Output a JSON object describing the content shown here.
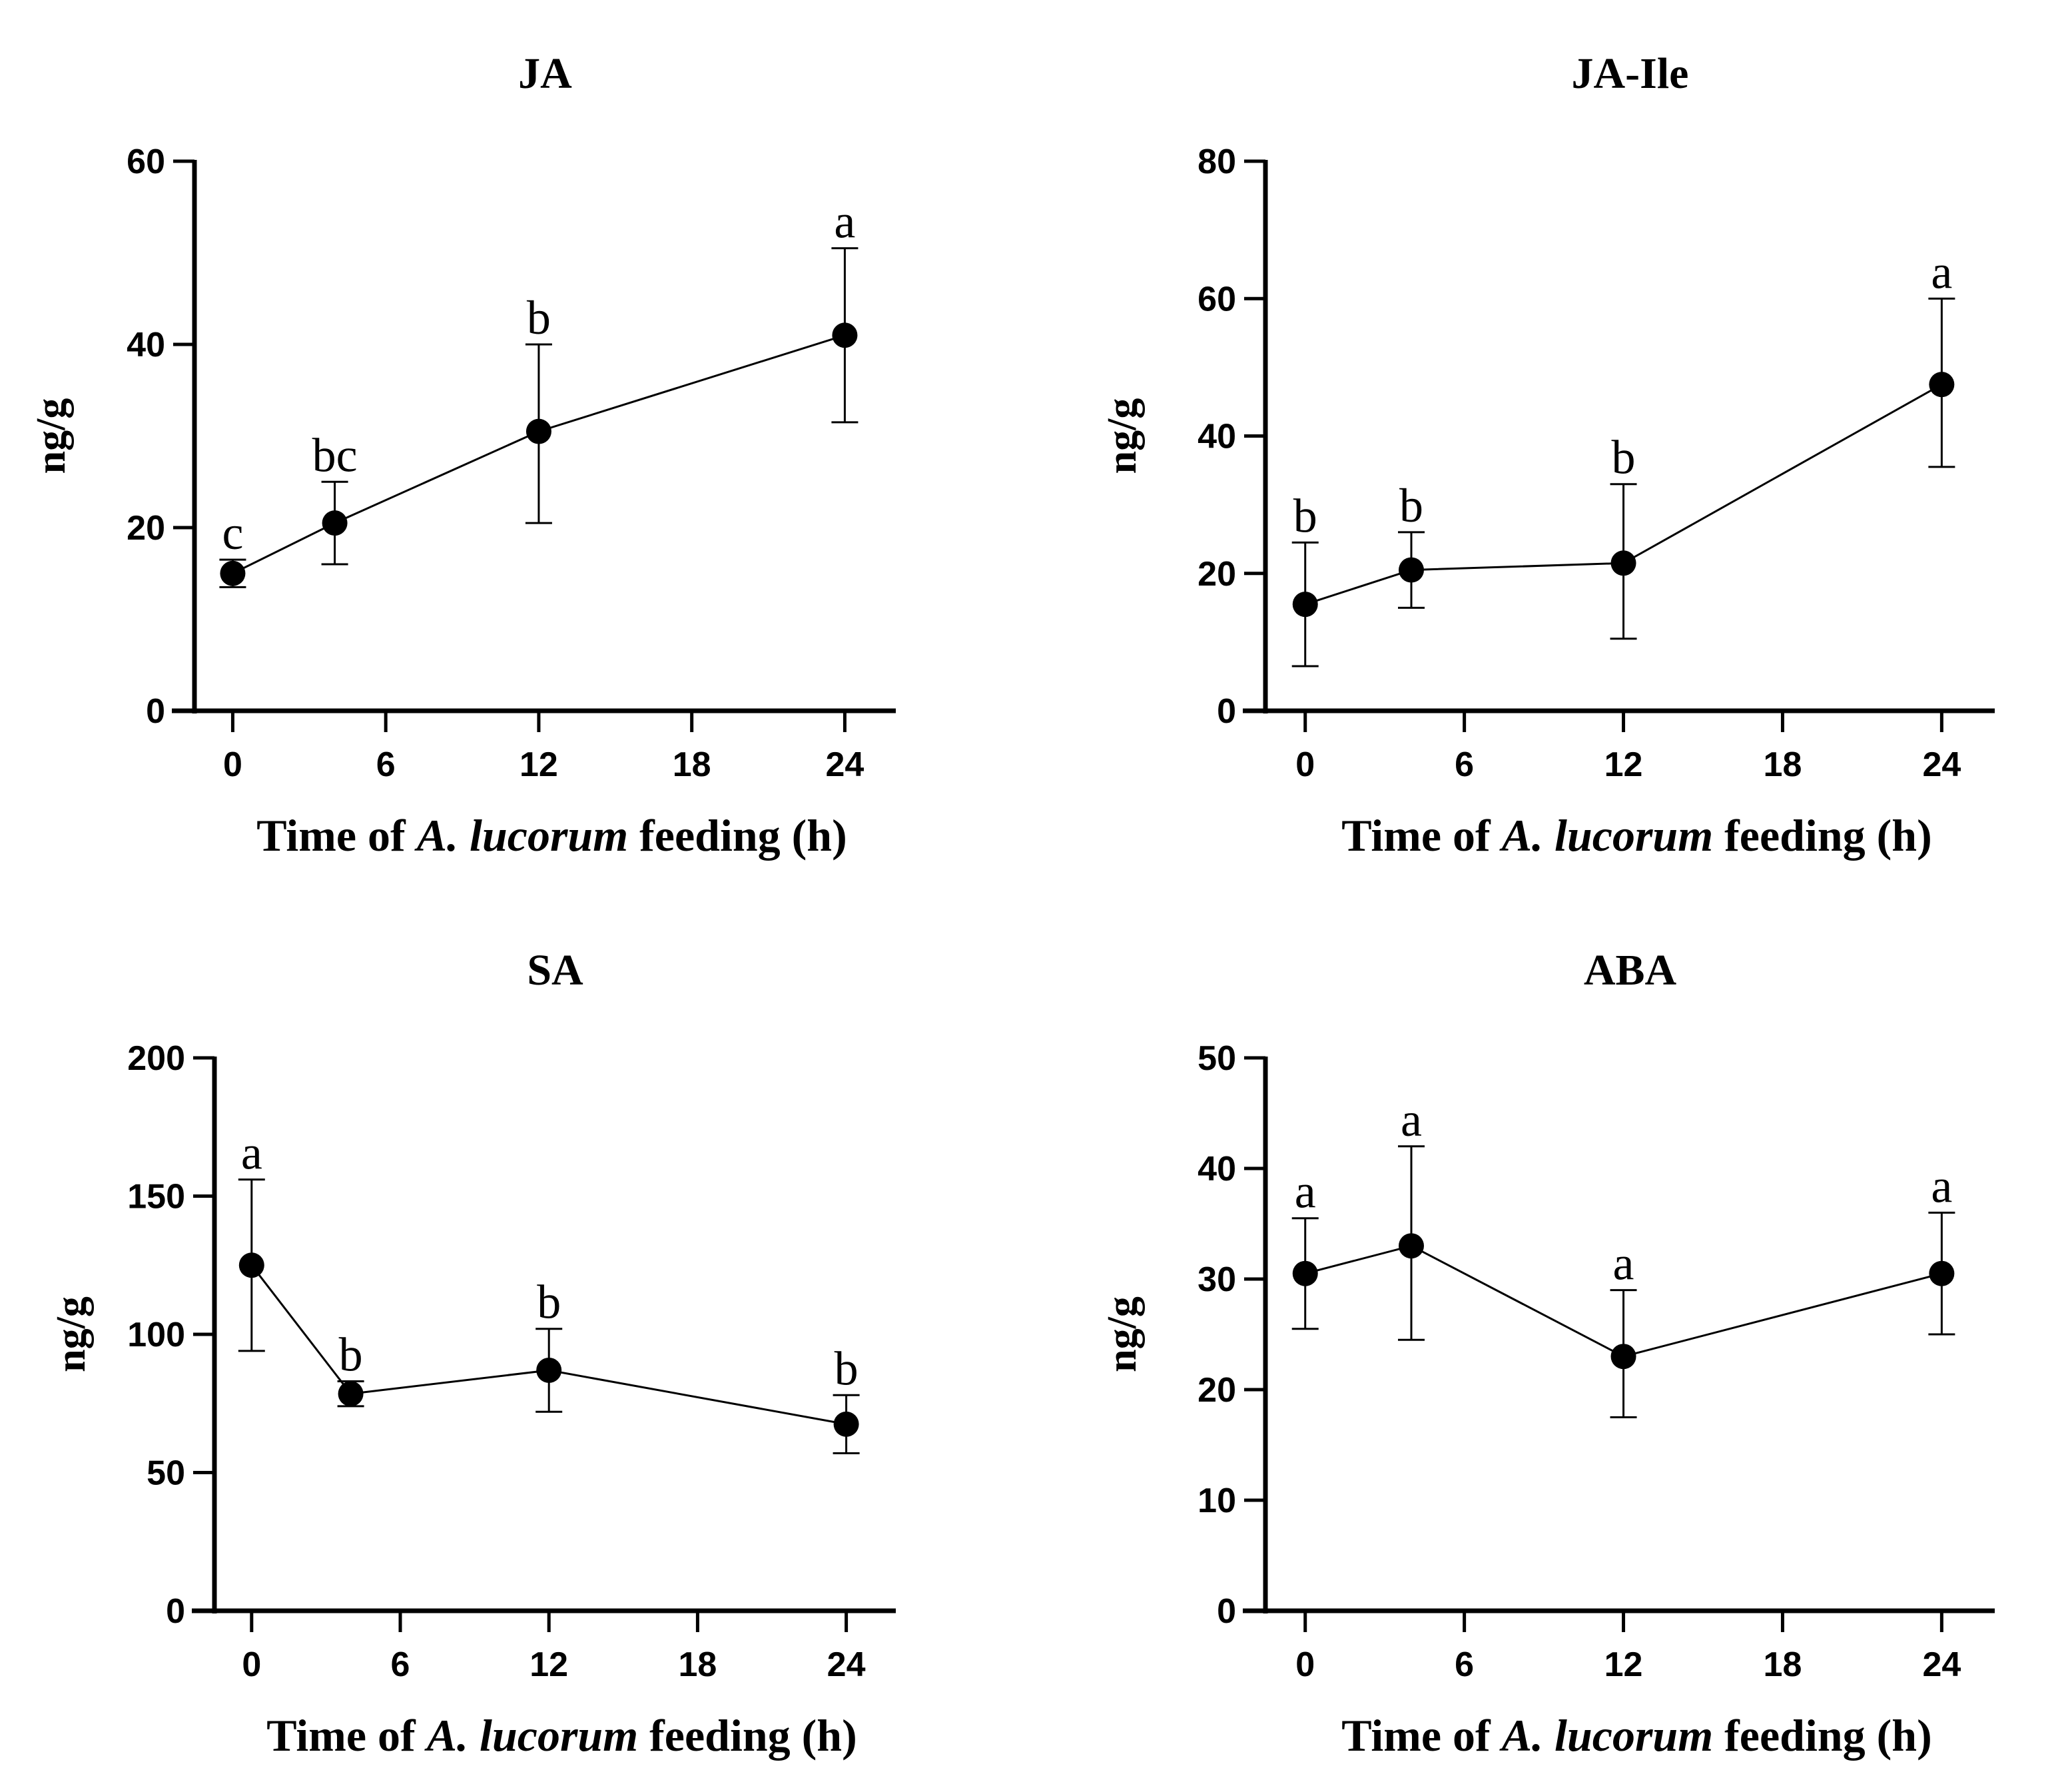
{
  "chart_data": [
    {
      "type": "line",
      "title": "JA",
      "xlabel_parts": [
        "Time of ",
        "A. lucorum",
        " feeding (h)"
      ],
      "ylabel": "ng/g",
      "xlim": [
        -1.5,
        26
      ],
      "ylim": [
        0,
        60
      ],
      "xticks": [
        0,
        6,
        12,
        18,
        24
      ],
      "yticks": [
        0,
        20,
        40,
        60
      ],
      "x": [
        0,
        4,
        12,
        24
      ],
      "values": [
        15,
        20.5,
        30.5,
        41
      ],
      "err_low": [
        13.5,
        16,
        20.5,
        31.5
      ],
      "err_high": [
        16.5,
        25,
        40,
        50.5
      ],
      "sig": [
        "c",
        "bc",
        "b",
        "a"
      ]
    },
    {
      "type": "line",
      "title": "JA-Ile",
      "xlabel_parts": [
        "Time of ",
        "A. lucorum",
        " feeding (h)"
      ],
      "ylabel": "ng/g",
      "xlim": [
        -1.5,
        26
      ],
      "ylim": [
        0,
        80
      ],
      "xticks": [
        0,
        6,
        12,
        18,
        24
      ],
      "yticks": [
        0,
        20,
        40,
        60,
        80
      ],
      "x": [
        0,
        4,
        12,
        24
      ],
      "values": [
        15.5,
        20.5,
        21.5,
        47.5
      ],
      "err_low": [
        6.5,
        15,
        10.5,
        35.5
      ],
      "err_high": [
        24.5,
        26,
        33,
        60
      ],
      "sig": [
        "b",
        "b",
        "b",
        "a"
      ]
    },
    {
      "type": "line",
      "title": "SA",
      "xlabel_parts": [
        "Time of ",
        "A. lucorum",
        " feeding (h)"
      ],
      "ylabel": "ng/g",
      "xlim": [
        -1.5,
        26
      ],
      "ylim": [
        0,
        200
      ],
      "xticks": [
        0,
        6,
        12,
        18,
        24
      ],
      "yticks": [
        0,
        50,
        100,
        150,
        200
      ],
      "x": [
        0,
        4,
        12,
        24
      ],
      "values": [
        125,
        78.5,
        87,
        67.5
      ],
      "err_low": [
        94,
        74,
        72,
        57
      ],
      "err_high": [
        156,
        83,
        102,
        78
      ],
      "sig": [
        "a",
        "b",
        "b",
        "b"
      ]
    },
    {
      "type": "line",
      "title": "ABA",
      "xlabel_parts": [
        "Time of ",
        "A. lucorum",
        " feeding (h)"
      ],
      "ylabel": "ng/g",
      "xlim": [
        -1.5,
        26
      ],
      "ylim": [
        0,
        50
      ],
      "xticks": [
        0,
        6,
        12,
        18,
        24
      ],
      "yticks": [
        0,
        10,
        20,
        30,
        40,
        50
      ],
      "x": [
        0,
        4,
        12,
        24
      ],
      "values": [
        30.5,
        33,
        23,
        30.5
      ],
      "err_low": [
        25.5,
        24.5,
        17.5,
        25
      ],
      "err_high": [
        35.5,
        42,
        29,
        36
      ],
      "sig": [
        "a",
        "a",
        "a",
        "a"
      ]
    }
  ]
}
